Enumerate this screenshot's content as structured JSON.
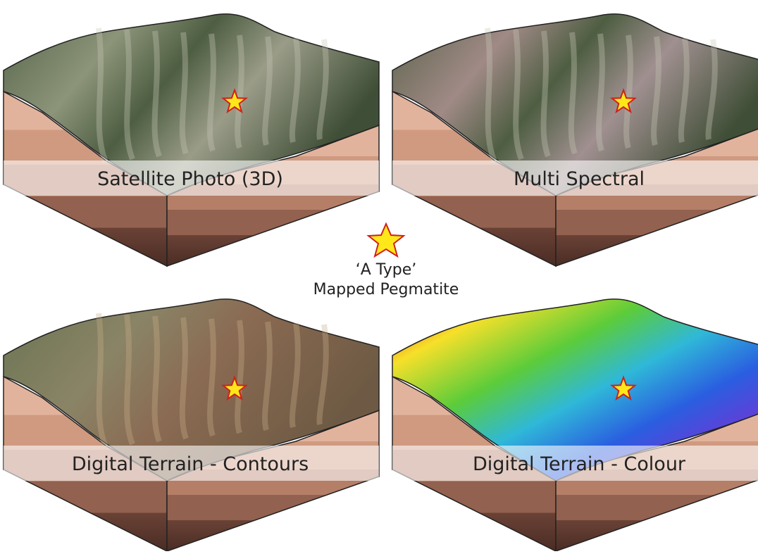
{
  "panels": [
    {
      "label": "Satellite Photo (3D)"
    },
    {
      "label": "Multi Spectral"
    },
    {
      "label": "Digital Terrain - Contours"
    },
    {
      "label": "Digital Terrain - Colour"
    }
  ],
  "legend": {
    "line1": "‘A Type’",
    "line2": "Mapped Pegmatite"
  }
}
